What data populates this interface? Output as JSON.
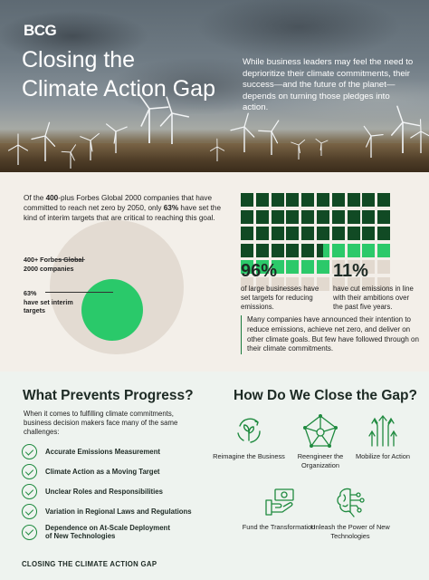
{
  "brand": {
    "logo": "BCG"
  },
  "hero": {
    "title_line1": "Closing the",
    "title_line2": "Climate Action Gap",
    "description": "While business leaders may feel the need to deprioritize their climate commitments, their success—and the future of the planet—depends on turning those pledges into action."
  },
  "intro": {
    "part1": "Of the ",
    "highlight1": "400",
    "part2": "-plus Forbes Global 2000 companies that have committed to reach net zero by 2050, only ",
    "highlight2": "63%",
    "part3": " have set the kind of interim targets that are critical to reaching this goal."
  },
  "circles": {
    "outer_label": "400+ Forbes Global 2000 companies",
    "inner_value": "63%",
    "inner_label": "have set interim targets",
    "inner_share": 0.63
  },
  "waffle": {
    "dark_cells": 35.5,
    "light_cells": 60.5,
    "total_cells": 100,
    "colors": {
      "dark": "#114a24",
      "light": "#2cc96a",
      "empty": "#e2d9cf"
    }
  },
  "stats": [
    {
      "value": "96%",
      "text": "of large businesses have set targets for reducing emissions."
    },
    {
      "value": "11%",
      "text": "have cut emissions in line with their ambitions over the past five years."
    }
  ],
  "quote": "Many companies have announced their intention to reduce emissions, achieve net zero, and deliver on other climate goals. But few have followed through on their climate commitments.",
  "challenges": {
    "title": "What Prevents Progress?",
    "intro": "When it comes to fulfilling climate commitments, business decision makers face many of the same challenges:",
    "items": [
      "Accurate Emissions Measurement",
      "Climate Action as a Moving Target",
      "Unclear Roles and Responsibilities",
      "Variation in Regional Laws and Regulations",
      "Dependence on At-Scale Deployment of New Technologies"
    ]
  },
  "solutions": {
    "title": "How Do We Close the Gap?",
    "items": [
      {
        "label": "Reimagine the Business",
        "icon": "plant-cycle-icon"
      },
      {
        "label": "Reengineer the Organization",
        "icon": "network-pentagon-icon"
      },
      {
        "label": "Mobilize for Action",
        "icon": "arrows-up-icon"
      },
      {
        "label": "Fund the Transformation",
        "icon": "money-hand-icon"
      },
      {
        "label": "Unleash the Power of New Technologies",
        "icon": "brain-circuit-icon"
      }
    ]
  },
  "footer": {
    "label": "CLOSING THE CLIMATE ACTION GAP"
  },
  "colors": {
    "accent_green": "#2ac96a",
    "dark_green": "#114a24",
    "icon_green": "#1f8a3f",
    "beige": "#e3dbd2"
  }
}
